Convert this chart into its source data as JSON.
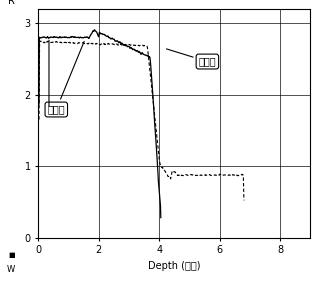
{
  "xlabel": "Depth (実小)",
  "ylabel_top": "R",
  "ylabel_bottom": "W",
  "xlim": [
    0,
    9
  ],
  "ylim": [
    0,
    3.2
  ],
  "xticks": [
    0,
    2,
    4,
    6,
    8
  ],
  "yticks": [
    0,
    1,
    2,
    3
  ],
  "annotation1": "试验一",
  "annotation2": "试验二",
  "line1_color": "#000000",
  "line2_color": "#000000",
  "background_color": "#ffffff",
  "line1_x_end": 4.05,
  "line2_x_end": 6.8
}
